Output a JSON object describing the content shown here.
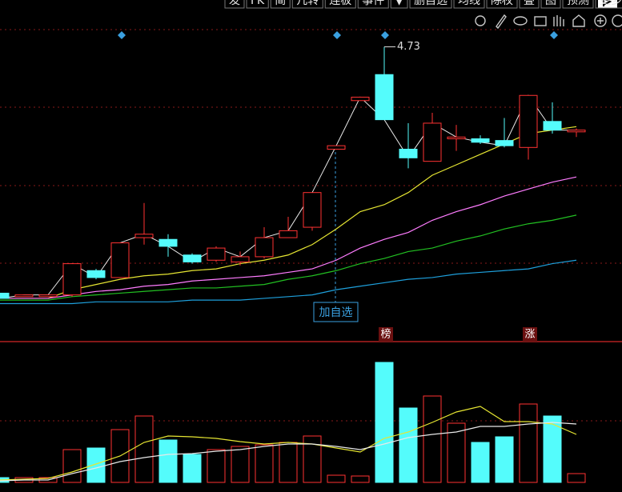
{
  "toolbar": [
    "发",
    "FK",
    "简",
    "几转",
    "连板",
    "事件",
    "▼",
    "删自选",
    "均线",
    "除权",
    "叠",
    "图",
    "预测",
    "更多"
  ],
  "chart_data": {
    "type": "candlestick",
    "categories": [
      null,
      null,
      null,
      null,
      null,
      null,
      null,
      null,
      null,
      null,
      null,
      null,
      null,
      null,
      null,
      null,
      null,
      null,
      null,
      null,
      null,
      null,
      null,
      null,
      null
    ],
    "open": [
      3.31,
      3.29,
      3.29,
      3.3,
      3.44,
      3.4,
      3.63,
      3.62,
      3.53,
      3.5,
      3.49,
      3.52,
      3.63,
      3.69,
      4.14,
      4.42,
      4.57,
      4.14,
      4.07,
      4.2,
      4.2,
      4.19,
      4.15,
      4.3,
      4.24
    ],
    "high": [
      3.31,
      3.3,
      3.3,
      3.48,
      3.45,
      3.6,
      3.83,
      3.65,
      3.54,
      3.58,
      3.55,
      3.69,
      3.75,
      3.89,
      4.16,
      4.44,
      4.73,
      4.29,
      4.35,
      4.28,
      4.22,
      4.32,
      4.45,
      4.41,
      4.26
    ],
    "low": [
      3.28,
      3.29,
      3.29,
      3.29,
      3.39,
      3.4,
      3.59,
      3.52,
      3.48,
      3.49,
      3.47,
      3.51,
      3.63,
      3.67,
      4.14,
      4.42,
      4.31,
      4.03,
      4.07,
      4.13,
      4.17,
      4.15,
      4.08,
      4.23,
      4.21
    ],
    "close": [
      3.28,
      3.3,
      3.3,
      3.48,
      3.4,
      3.6,
      3.65,
      3.58,
      3.49,
      3.57,
      3.52,
      3.63,
      3.67,
      3.89,
      4.16,
      4.44,
      4.31,
      4.09,
      4.29,
      4.21,
      4.18,
      4.16,
      4.45,
      4.25,
      4.25
    ],
    "up_color": "#ff3232",
    "down_color": "#54fcfc",
    "close_line_color": "#e8e8e8",
    "ylim": [
      3.04,
      5.0
    ],
    "series": [
      {
        "color": "#e6e632",
        "values": [
          3.28,
          3.28,
          3.28,
          3.33,
          3.36,
          3.39,
          3.41,
          3.42,
          3.44,
          3.45,
          3.48,
          3.5,
          3.53,
          3.59,
          3.68,
          3.78,
          3.82,
          3.89,
          3.99,
          4.05,
          4.11,
          4.17,
          4.23,
          4.25,
          4.27
        ]
      },
      {
        "color": "#ff7cff",
        "values": [
          3.28,
          3.28,
          3.28,
          3.3,
          3.32,
          3.33,
          3.35,
          3.36,
          3.38,
          3.39,
          3.4,
          3.41,
          3.43,
          3.45,
          3.5,
          3.57,
          3.62,
          3.66,
          3.73,
          3.78,
          3.82,
          3.87,
          3.91,
          3.95,
          3.98
        ]
      },
      {
        "color": "#22c022",
        "values": [
          3.27,
          3.27,
          3.27,
          3.29,
          3.3,
          3.31,
          3.32,
          3.33,
          3.34,
          3.34,
          3.35,
          3.36,
          3.39,
          3.41,
          3.44,
          3.48,
          3.51,
          3.55,
          3.57,
          3.61,
          3.64,
          3.68,
          3.71,
          3.73,
          3.76
        ]
      },
      {
        "color": "#1ea0dc",
        "values": [
          3.25,
          3.25,
          3.25,
          3.25,
          3.26,
          3.26,
          3.26,
          3.26,
          3.27,
          3.27,
          3.27,
          3.28,
          3.29,
          3.3,
          3.33,
          3.35,
          3.37,
          3.39,
          3.4,
          3.42,
          3.43,
          3.44,
          3.45,
          3.48,
          3.5
        ]
      }
    ],
    "watchlist_button": "加自选",
    "markers": [
      {
        "index": 16,
        "text": "榜"
      },
      {
        "index": 22,
        "text": "涨"
      }
    ],
    "volume": {
      "values": [
        6,
        6,
        6,
        41,
        43,
        66,
        83,
        53,
        35,
        41,
        45,
        47,
        50,
        58,
        9,
        8,
        150,
        93,
        108,
        74,
        50,
        57,
        98,
        83,
        11
      ],
      "ylim": [
        0,
        175
      ],
      "series": [
        {
          "color": "#e6e632",
          "values": [
            3,
            4,
            5,
            13,
            23,
            33,
            50,
            58,
            57,
            55,
            51,
            48,
            50,
            48,
            43,
            38,
            55,
            63,
            75,
            88,
            95,
            76,
            76,
            73,
            60
          ]
        },
        {
          "color": "#e8e8e8",
          "values": [
            2,
            3,
            3,
            11,
            18,
            26,
            31,
            35,
            36,
            39,
            41,
            45,
            48,
            48,
            45,
            41,
            48,
            56,
            60,
            63,
            70,
            70,
            73,
            75,
            73
          ]
        }
      ]
    }
  }
}
